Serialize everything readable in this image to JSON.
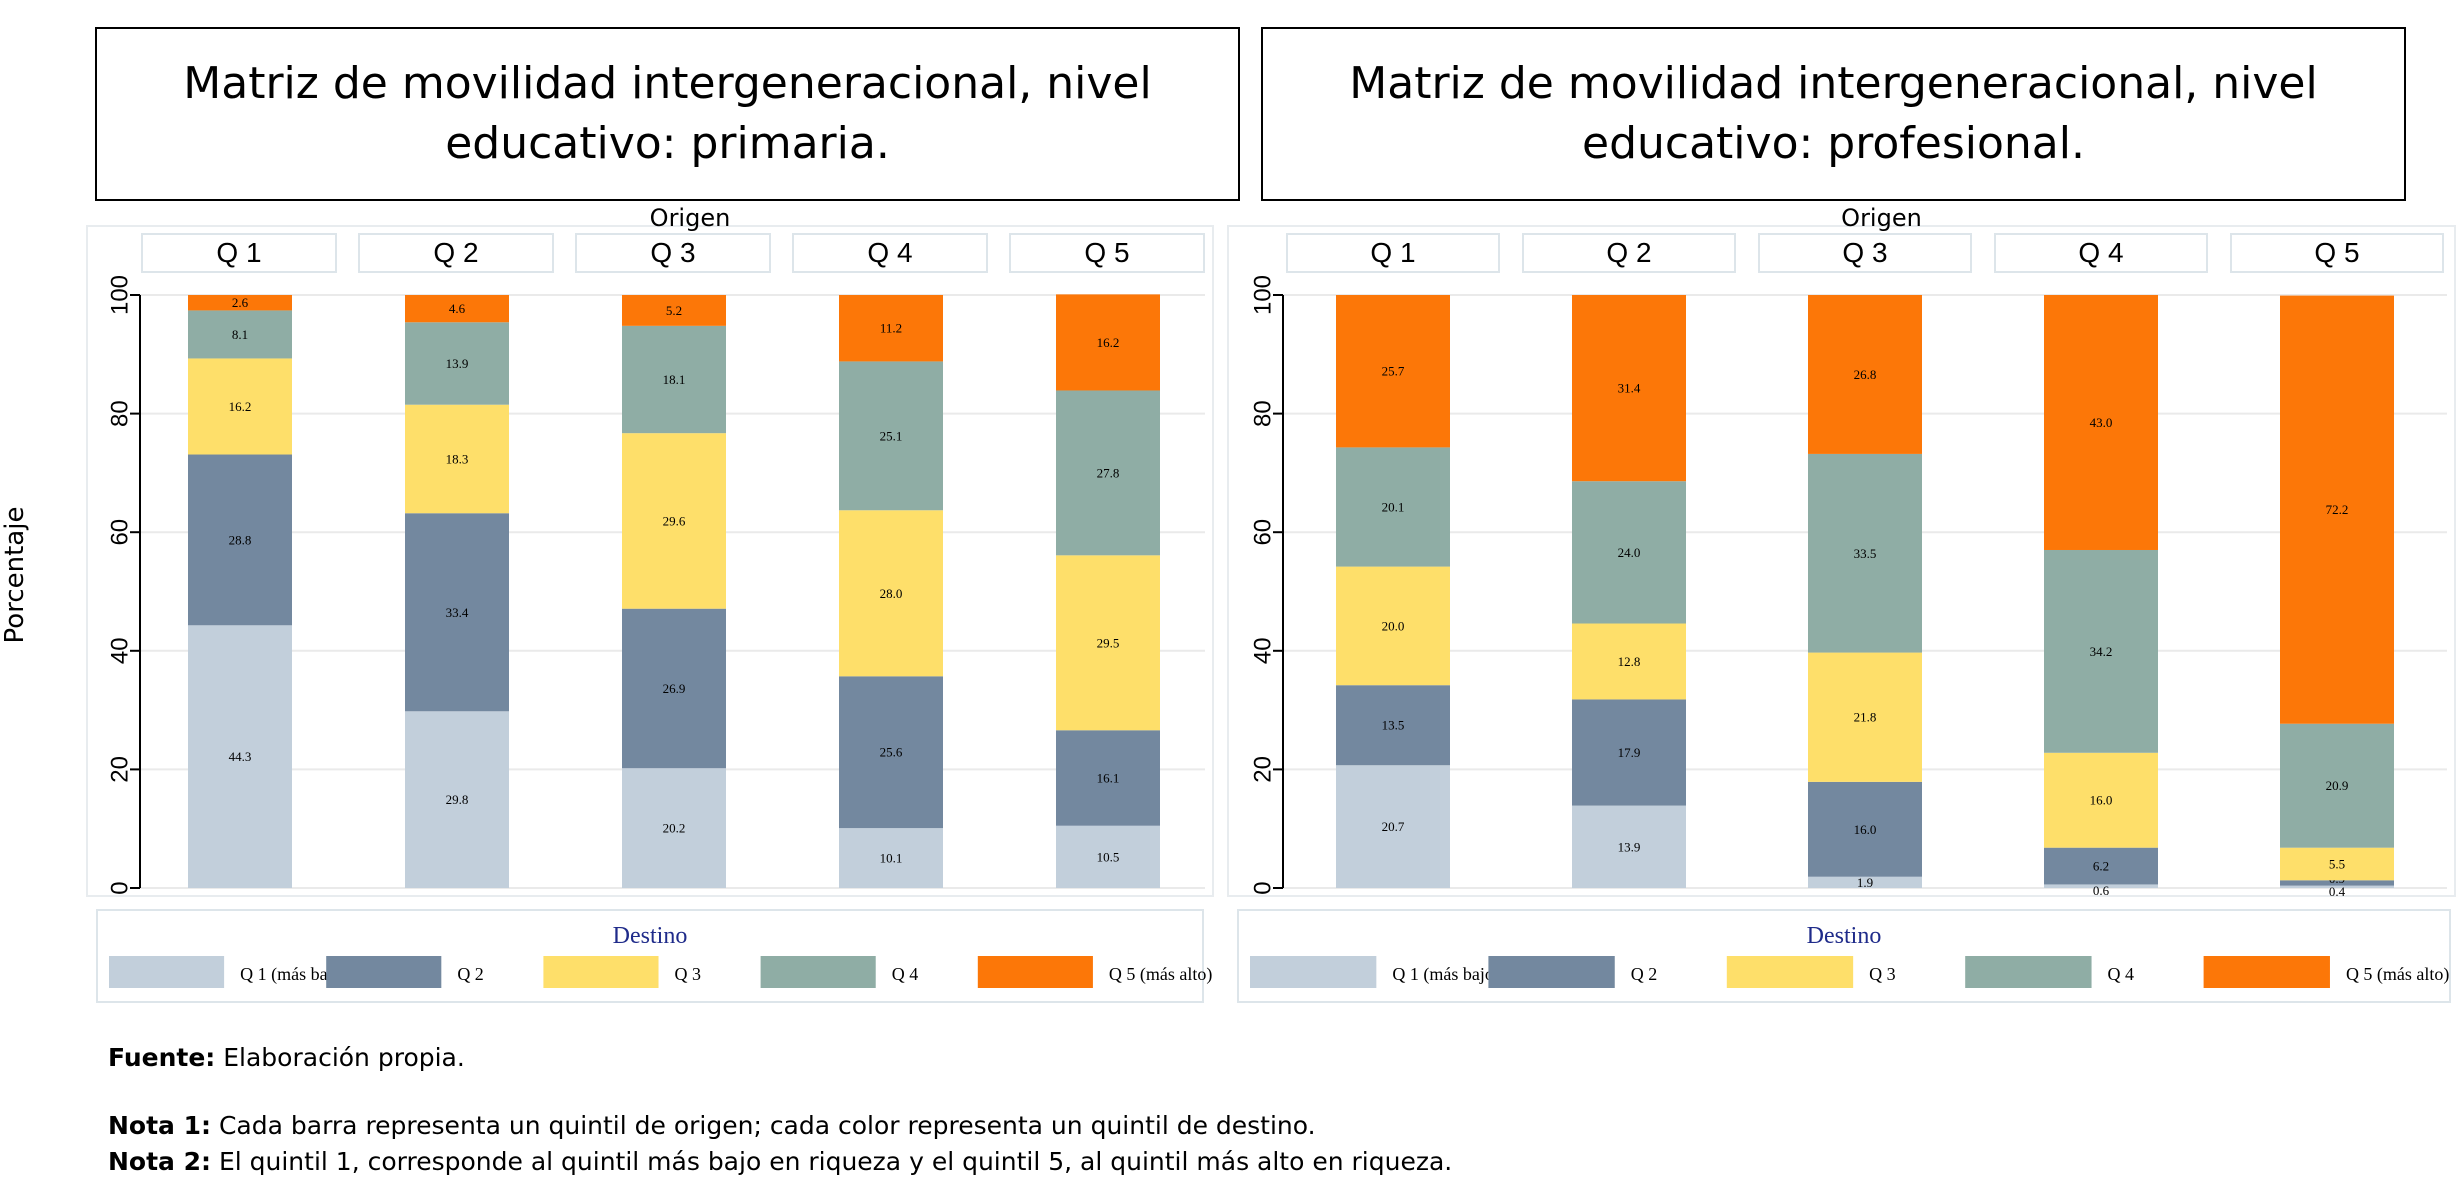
{
  "titles": {
    "left": "Matriz de movilidad intergeneracional, nivel educativo: primaria.",
    "right": "Matriz de movilidad intergeneracional, nivel educativo: profesional."
  },
  "y_axis_label": "Porcentaje",
  "colors": {
    "Q1": "#c2cfdb",
    "Q2": "#73889f",
    "Q3": "#fedf6a",
    "Q4": "#8fada5",
    "Q5": "#fc7708"
  },
  "chart_data": [
    {
      "type": "bar",
      "stacked": true,
      "title": "Matriz de movilidad intergeneracional, nivel educativo: primaria.",
      "xlabel": "Origen",
      "ylabel": "Porcentaje",
      "ylim": [
        0,
        100
      ],
      "yticks": [
        0,
        20,
        40,
        60,
        80,
        100
      ],
      "categories": [
        "Q 1",
        "Q 2",
        "Q 3",
        "Q 4",
        "Q 5"
      ],
      "legend_title": "Destino",
      "legend_position": "bottom",
      "grid": true,
      "series": [
        {
          "name": "Q 1 (más bajo)",
          "key": "Q1",
          "values": [
            44.3,
            29.8,
            20.2,
            10.1,
            10.5
          ]
        },
        {
          "name": "Q 2",
          "key": "Q2",
          "values": [
            28.8,
            33.4,
            26.9,
            25.6,
            16.1
          ]
        },
        {
          "name": "Q 3",
          "key": "Q3",
          "values": [
            16.2,
            18.3,
            29.6,
            28.0,
            29.5
          ]
        },
        {
          "name": "Q 4",
          "key": "Q4",
          "values": [
            8.1,
            13.9,
            18.1,
            25.1,
            27.8
          ]
        },
        {
          "name": "Q 5 (más alto)",
          "key": "Q5",
          "values": [
            2.6,
            4.6,
            5.2,
            11.2,
            16.2
          ]
        }
      ]
    },
    {
      "type": "bar",
      "stacked": true,
      "title": "Matriz de movilidad intergeneracional, nivel educativo: profesional.",
      "xlabel": "Origen",
      "ylabel": "Porcentaje",
      "ylim": [
        0,
        100
      ],
      "yticks": [
        0,
        20,
        40,
        60,
        80,
        100
      ],
      "categories": [
        "Q 1",
        "Q 2",
        "Q 3",
        "Q 4",
        "Q 5"
      ],
      "legend_title": "Destino",
      "legend_position": "bottom",
      "grid": true,
      "series": [
        {
          "name": "Q 1 (más bajo)",
          "key": "Q1",
          "values": [
            20.7,
            13.9,
            1.9,
            0.6,
            0.4
          ]
        },
        {
          "name": "Q 2",
          "key": "Q2",
          "values": [
            13.5,
            17.9,
            16.0,
            6.2,
            0.9
          ]
        },
        {
          "name": "Q 3",
          "key": "Q3",
          "values": [
            20.0,
            12.8,
            21.8,
            16.0,
            5.5
          ]
        },
        {
          "name": "Q 4",
          "key": "Q4",
          "values": [
            20.1,
            24.0,
            33.5,
            34.2,
            20.9
          ]
        },
        {
          "name": "Q 5 (más alto)",
          "key": "Q5",
          "values": [
            25.7,
            31.4,
            26.8,
            43.0,
            72.2
          ]
        }
      ]
    }
  ],
  "notes": {
    "source_label": "Fuente:",
    "source_text": " Elaboración propia.",
    "note1_label": "Nota 1:",
    "note1_text": " Cada barra representa un quintil de origen; cada color representa un quintil de destino.",
    "note2_label": "Nota 2:",
    "note2_text": " El quintil 1, corresponde al quintil más bajo en riqueza y el quintil 5, al quintil más alto en riqueza."
  }
}
